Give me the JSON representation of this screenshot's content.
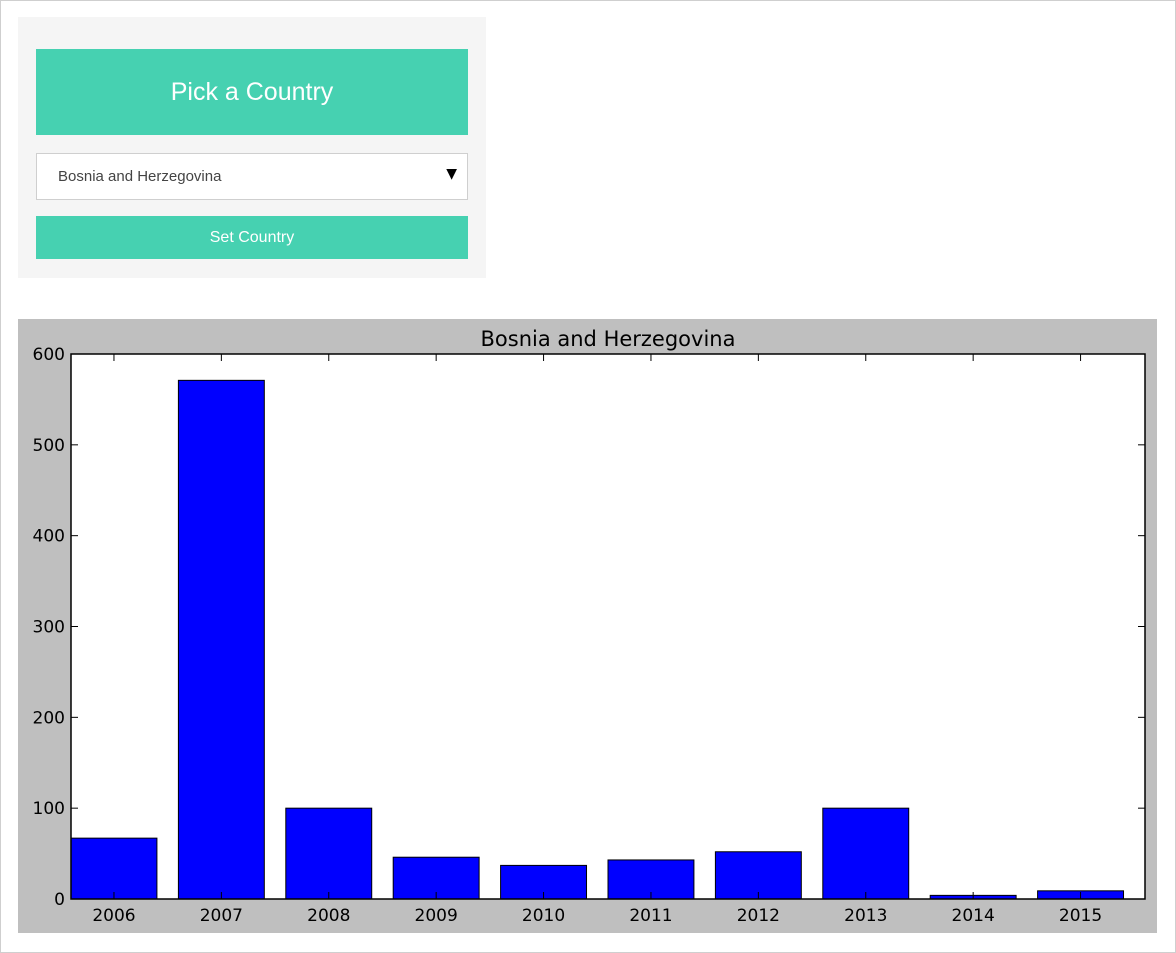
{
  "picker": {
    "title": "Pick a Country",
    "selected_country": "Bosnia and Herzegovina",
    "dropdown_icon": "triangle-down-icon",
    "button_label": "Set Country"
  },
  "colors": {
    "accent": "#46d1b1",
    "panel_bg": "#f5f5f5",
    "chart_bg": "#bfbfbf",
    "bar": "#0000ff"
  },
  "chart_data": {
    "type": "bar",
    "title": "Bosnia and Herzegovina",
    "categories": [
      "2006",
      "2007",
      "2008",
      "2009",
      "2010",
      "2011",
      "2012",
      "2013",
      "2014",
      "2015"
    ],
    "values": [
      67,
      571,
      100,
      46,
      37,
      43,
      52,
      100,
      4,
      9
    ],
    "ylim": [
      0,
      600
    ],
    "yticks": [
      0,
      100,
      200,
      300,
      400,
      500,
      600
    ],
    "xlabel": "",
    "ylabel": "",
    "grid": false,
    "legend": false
  }
}
